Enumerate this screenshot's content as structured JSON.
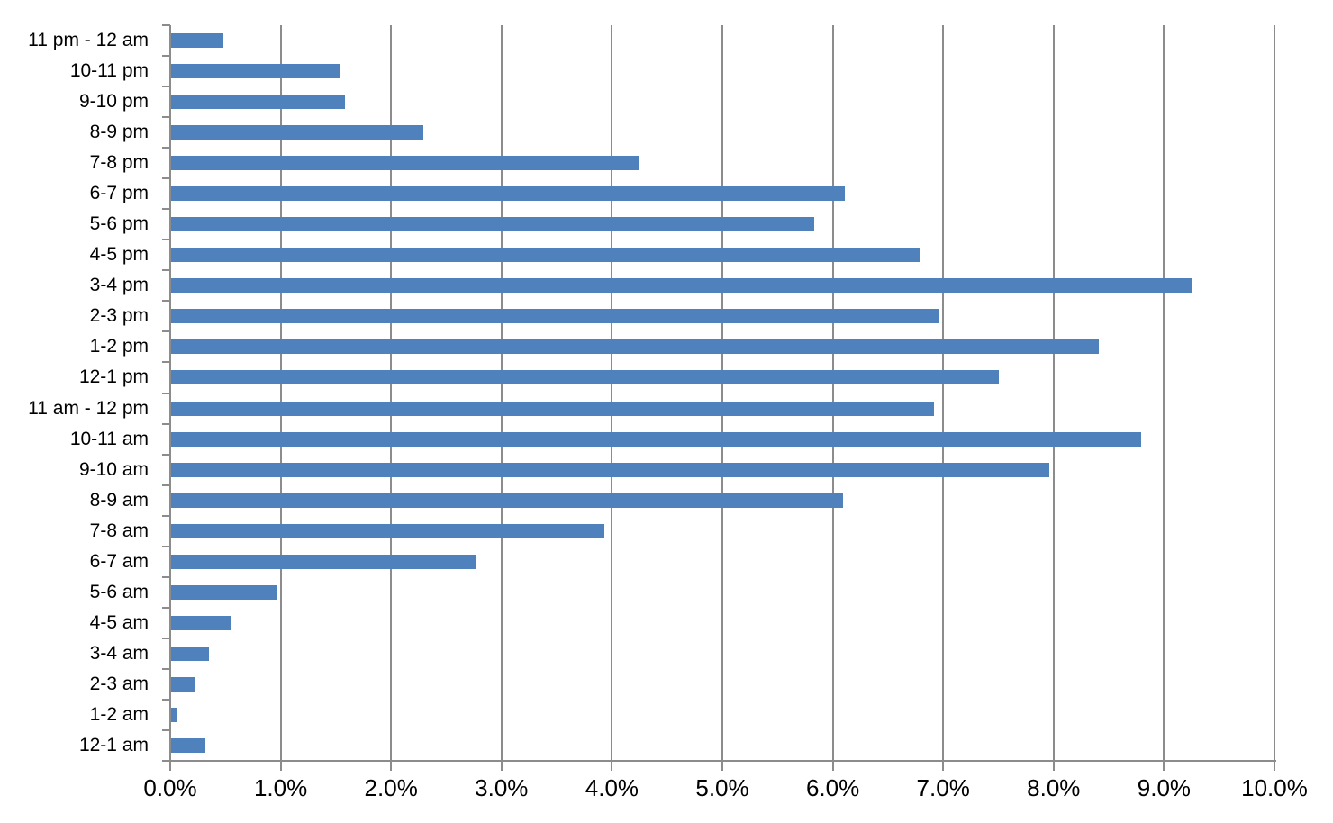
{
  "chart_data": {
    "type": "bar",
    "orientation": "horizontal",
    "title": "",
    "xlabel": "",
    "ylabel": "",
    "categories": [
      "11 pm - 12 am",
      "10-11 pm",
      "9-10 pm",
      "8-9 pm",
      "7-8 pm",
      "6-7 pm",
      "5-6 pm",
      "4-5 pm",
      "3-4 pm",
      "2-3 pm",
      "1-2 pm",
      "12-1 pm",
      "11 am - 12 pm",
      "10-11 am",
      "9-10 am",
      "8-9 am",
      "7-8 am",
      "6-7 am",
      "5-6 am",
      "4-5 am",
      "3-4 am",
      "2-3 am",
      "1-2 am",
      "12-1 am"
    ],
    "values": [
      0.48,
      1.54,
      1.58,
      2.29,
      4.25,
      6.11,
      5.83,
      6.79,
      9.25,
      6.96,
      8.41,
      7.5,
      6.92,
      8.79,
      7.96,
      6.09,
      3.93,
      2.77,
      0.96,
      0.55,
      0.35,
      0.22,
      0.06,
      0.32
    ],
    "value_unit": "%",
    "xlim": [
      0,
      10
    ],
    "x_tick_values": [
      0,
      1,
      2,
      3,
      4,
      5,
      6,
      7,
      8,
      9,
      10
    ],
    "x_tick_labels": [
      "0.0%",
      "1.0%",
      "2.0%",
      "3.0%",
      "4.0%",
      "5.0%",
      "6.0%",
      "7.0%",
      "8.0%",
      "9.0%",
      "10.0%"
    ],
    "grid": true,
    "legend": false,
    "bar_color": "#4f81bd",
    "gridline_color": "#8c8c8c",
    "axis_color": "#8c8c8c",
    "text_color": "#000000",
    "background": "#ffffff"
  }
}
